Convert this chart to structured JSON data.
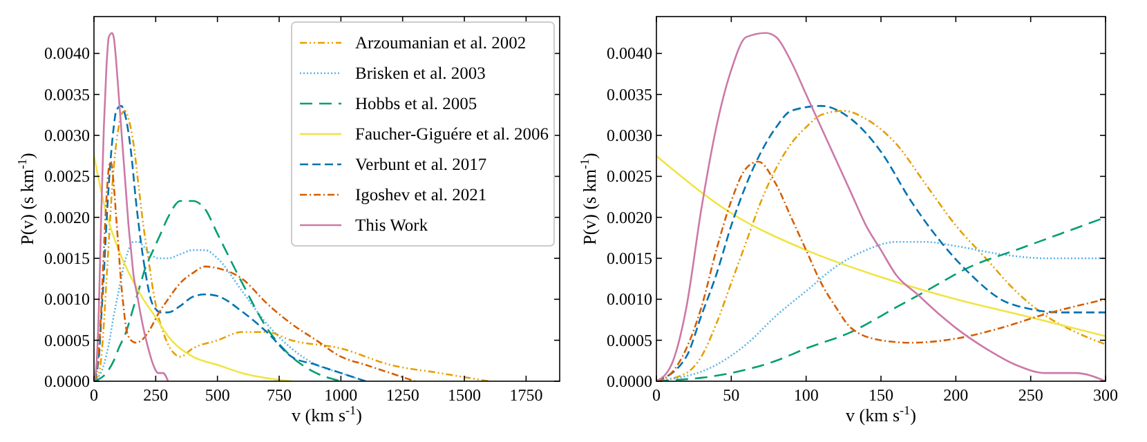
{
  "chart_data": [
    {
      "type": "line",
      "xlabel": "v (km s$^{-1}$)",
      "ylabel": "P(v) (s km$^{-1}$)",
      "xlim": [
        0,
        1886
      ],
      "xticks": [
        0,
        250,
        500,
        750,
        1000,
        1250,
        1500,
        1750
      ],
      "ylim": [
        0,
        0.00445
      ],
      "yticks": [
        {
          "value": 0,
          "label": "0.0000"
        },
        {
          "value": 0.0005,
          "label": "0.0005"
        },
        {
          "value": 0.001,
          "label": "0.0010"
        },
        {
          "value": 0.0015,
          "label": "0.0015"
        },
        {
          "value": 0.002,
          "label": "0.0020"
        },
        {
          "value": 0.0025,
          "label": "0.0025"
        },
        {
          "value": 0.003,
          "label": "0.0030"
        },
        {
          "value": 0.0035,
          "label": "0.0035"
        },
        {
          "value": 0.004,
          "label": "0.0040"
        }
      ],
      "legend": "top right",
      "series": [
        {
          "name": "Arzoumanian et al. 2002",
          "color": "#e69f00",
          "line_style": "dashdotdot",
          "x": [
            0,
            20,
            30,
            40,
            50,
            60,
            70,
            80,
            90,
            100,
            110,
            125,
            140,
            160,
            180,
            200,
            220,
            240,
            260,
            280,
            300,
            350,
            400,
            500,
            600,
            700,
            800,
            1000,
            1200,
            1400,
            1600
          ],
          "values": [
            0,
            0.0001,
            0.0003,
            0.0007,
            0.0012,
            0.0017,
            0.0022,
            0.0026,
            0.0029,
            0.0031,
            0.00325,
            0.0033,
            0.0032,
            0.0029,
            0.0024,
            0.0019,
            0.0015,
            0.0011,
            0.0008,
            0.0006,
            0.00045,
            0.0003,
            0.0004,
            0.0005,
            0.0006,
            0.0006,
            0.0005,
            0.0004,
            0.0002,
            0.0001,
            0
          ]
        },
        {
          "name": "Brisken et al. 2003",
          "color": "#56b4e9",
          "line_style": "dotted",
          "x": [
            0,
            40,
            60,
            80,
            100,
            120,
            140,
            160,
            180,
            200,
            230,
            260,
            300,
            350,
            400,
            450,
            500,
            600,
            700,
            800,
            900,
            1000,
            1100
          ],
          "values": [
            0,
            0.0002,
            0.00045,
            0.0008,
            0.0011,
            0.0014,
            0.0016,
            0.0017,
            0.0017,
            0.00165,
            0.00155,
            0.0015,
            0.0015,
            0.00155,
            0.0016,
            0.0016,
            0.0015,
            0.0011,
            0.0007,
            0.0004,
            0.0002,
            0.0001,
            0
          ]
        },
        {
          "name": "Hobbs et al. 2005",
          "color": "#009e73",
          "line_style": "longdashed",
          "x": [
            0,
            50,
            80,
            100,
            130,
            160,
            180,
            210,
            240,
            270,
            300,
            350,
            400,
            450,
            500,
            600,
            700,
            800,
            900,
            1000
          ],
          "values": [
            0,
            0.0001,
            0.00025,
            0.0004,
            0.0006,
            0.0009,
            0.0011,
            0.0014,
            0.0016,
            0.0018,
            0.002,
            0.0022,
            0.0022,
            0.0021,
            0.0018,
            0.0012,
            0.00065,
            0.0003,
            0.0001,
            0
          ]
        },
        {
          "name": "Faucher-Giguére et al. 2006",
          "color": "#f0e442",
          "line_style": "solid",
          "x": [
            0,
            50,
            100,
            150,
            200,
            250,
            300,
            400,
            500,
            600,
            800
          ],
          "values": [
            0.00275,
            0.00205,
            0.0016,
            0.00127,
            0.001,
            0.00078,
            0.00055,
            0.0003,
            0.0002,
            0.0001,
            0
          ]
        },
        {
          "name": "Verbunt et al. 2017",
          "color": "#0072b2",
          "line_style": "dashed",
          "x": [
            0,
            20,
            30,
            40,
            50,
            60,
            70,
            80,
            90,
            110,
            130,
            150,
            170,
            190,
            210,
            230,
            250,
            270,
            300,
            350,
            400,
            450,
            500,
            600,
            700,
            800,
            900,
            1000,
            1100
          ],
          "values": [
            0,
            0.0003,
            0.0008,
            0.0013,
            0.0019,
            0.0024,
            0.0028,
            0.0031,
            0.0033,
            0.00336,
            0.0032,
            0.0028,
            0.0022,
            0.0017,
            0.0013,
            0.001,
            0.00088,
            0.00084,
            0.00084,
            0.00092,
            0.00103,
            0.00106,
            0.00104,
            0.00085,
            0.0006,
            0.0003,
            0.0002,
            0.0001,
            0
          ]
        },
        {
          "name": "Igoshev et al. 2021",
          "color": "#d55e00",
          "line_style": "dashdot",
          "x": [
            0,
            10,
            20,
            30,
            40,
            50,
            60,
            68,
            80,
            90,
            100,
            110,
            120,
            130,
            150,
            170,
            200,
            230,
            260,
            300,
            350,
            400,
            450,
            500,
            600,
            700,
            800,
            900,
            1000,
            1100,
            1200,
            1300
          ],
          "values": [
            0,
            0.0001,
            0.0004,
            0.0009,
            0.0016,
            0.0022,
            0.0026,
            0.00268,
            0.0024,
            0.002,
            0.0016,
            0.0012,
            0.0009,
            0.00065,
            0.0005,
            0.00047,
            0.00052,
            0.00065,
            0.00082,
            0.001,
            0.0012,
            0.00132,
            0.0014,
            0.00138,
            0.00125,
            0.00095,
            0.0007,
            0.0005,
            0.0003,
            0.0002,
            0.0001,
            0
          ]
        },
        {
          "name": "This Work",
          "color": "#cc79a7",
          "line_style": "solid",
          "x": [
            0,
            10,
            20,
            30,
            40,
            50,
            60,
            73,
            80,
            90,
            100,
            110,
            120,
            130,
            140,
            150,
            160,
            175,
            190,
            200,
            220,
            240,
            260,
            280,
            300
          ],
          "values": [
            0,
            0.0002,
            0.0009,
            0.0021,
            0.0031,
            0.0038,
            0.0042,
            0.00425,
            0.0042,
            0.0039,
            0.0035,
            0.0031,
            0.0027,
            0.0023,
            0.0019,
            0.0016,
            0.0013,
            0.00105,
            0.0008,
            0.00065,
            0.0004,
            0.0002,
            0.0001,
            0.0001,
            0
          ]
        }
      ]
    },
    {
      "type": "line",
      "xlabel": "v (km s$^{-1}$)",
      "ylabel": "P(v) (s km$^{-1}$)",
      "xlim": [
        0,
        300
      ],
      "xticks": [
        0,
        50,
        100,
        150,
        200,
        250,
        300
      ],
      "ylim": [
        0,
        0.00445
      ],
      "yticks": [
        {
          "value": 0,
          "label": "0.0000"
        },
        {
          "value": 0.0005,
          "label": "0.0005"
        },
        {
          "value": 0.001,
          "label": "0.0010"
        },
        {
          "value": 0.0015,
          "label": "0.0015"
        },
        {
          "value": 0.002,
          "label": "0.0020"
        },
        {
          "value": 0.0025,
          "label": "0.0025"
        },
        {
          "value": 0.003,
          "label": "0.0030"
        },
        {
          "value": 0.0035,
          "label": "0.0035"
        },
        {
          "value": 0.004,
          "label": "0.0040"
        }
      ],
      "series": [
        {
          "color": "#e69f00",
          "line_style": "dashdotdot",
          "x": [
            0,
            20,
            30,
            40,
            50,
            60,
            70,
            80,
            90,
            100,
            110,
            125,
            140,
            160,
            180,
            200,
            220,
            240,
            260,
            280,
            300
          ],
          "values": [
            0,
            0.0001,
            0.0003,
            0.0007,
            0.0012,
            0.0017,
            0.0022,
            0.0026,
            0.0029,
            0.0031,
            0.00325,
            0.0033,
            0.0032,
            0.0029,
            0.0024,
            0.0019,
            0.0015,
            0.0011,
            0.0008,
            0.0006,
            0.00045
          ]
        },
        {
          "color": "#56b4e9",
          "line_style": "dotted",
          "x": [
            0,
            40,
            60,
            80,
            100,
            120,
            140,
            160,
            180,
            200,
            230,
            260,
            300
          ],
          "values": [
            0,
            0.0002,
            0.00045,
            0.0008,
            0.0011,
            0.0014,
            0.0016,
            0.0017,
            0.0017,
            0.00165,
            0.00155,
            0.0015,
            0.0015
          ]
        },
        {
          "color": "#009e73",
          "line_style": "longdashed",
          "x": [
            0,
            50,
            80,
            100,
            130,
            160,
            180,
            210,
            240,
            270,
            300
          ],
          "values": [
            0,
            0.0001,
            0.00025,
            0.0004,
            0.0006,
            0.0009,
            0.0011,
            0.0014,
            0.0016,
            0.0018,
            0.002
          ]
        },
        {
          "color": "#f0e442",
          "line_style": "solid",
          "x": [
            0,
            50,
            100,
            150,
            200,
            250,
            300
          ],
          "values": [
            0.00275,
            0.00205,
            0.0016,
            0.00127,
            0.001,
            0.00078,
            0.00055
          ]
        },
        {
          "color": "#0072b2",
          "line_style": "dashed",
          "x": [
            0,
            20,
            30,
            40,
            50,
            60,
            70,
            80,
            90,
            110,
            130,
            150,
            170,
            190,
            210,
            230,
            250,
            270,
            300
          ],
          "values": [
            0,
            0.0003,
            0.0008,
            0.0013,
            0.0019,
            0.0024,
            0.0028,
            0.0031,
            0.0033,
            0.00336,
            0.0032,
            0.0028,
            0.0022,
            0.0017,
            0.0013,
            0.001,
            0.00088,
            0.00084,
            0.00084
          ]
        },
        {
          "color": "#d55e00",
          "line_style": "dashdot",
          "x": [
            0,
            10,
            20,
            30,
            40,
            50,
            60,
            68,
            80,
            90,
            100,
            110,
            120,
            130,
            150,
            170,
            200,
            230,
            260,
            300
          ],
          "values": [
            0,
            0.0001,
            0.0004,
            0.0009,
            0.0016,
            0.0022,
            0.0026,
            0.00268,
            0.0024,
            0.002,
            0.0016,
            0.0012,
            0.0009,
            0.00065,
            0.0005,
            0.00047,
            0.00052,
            0.00065,
            0.00082,
            0.001
          ]
        },
        {
          "color": "#cc79a7",
          "line_style": "solid",
          "x": [
            0,
            10,
            20,
            30,
            40,
            50,
            60,
            73,
            80,
            90,
            100,
            110,
            120,
            130,
            140,
            150,
            160,
            175,
            190,
            200,
            220,
            240,
            260,
            280,
            300
          ],
          "values": [
            0,
            0.0002,
            0.0009,
            0.0021,
            0.0031,
            0.0038,
            0.0042,
            0.00425,
            0.0042,
            0.0039,
            0.0035,
            0.0031,
            0.0027,
            0.0023,
            0.0019,
            0.0016,
            0.0013,
            0.00105,
            0.0008,
            0.00065,
            0.0004,
            0.0002,
            0.0001,
            0.0001,
            0
          ]
        }
      ]
    }
  ]
}
